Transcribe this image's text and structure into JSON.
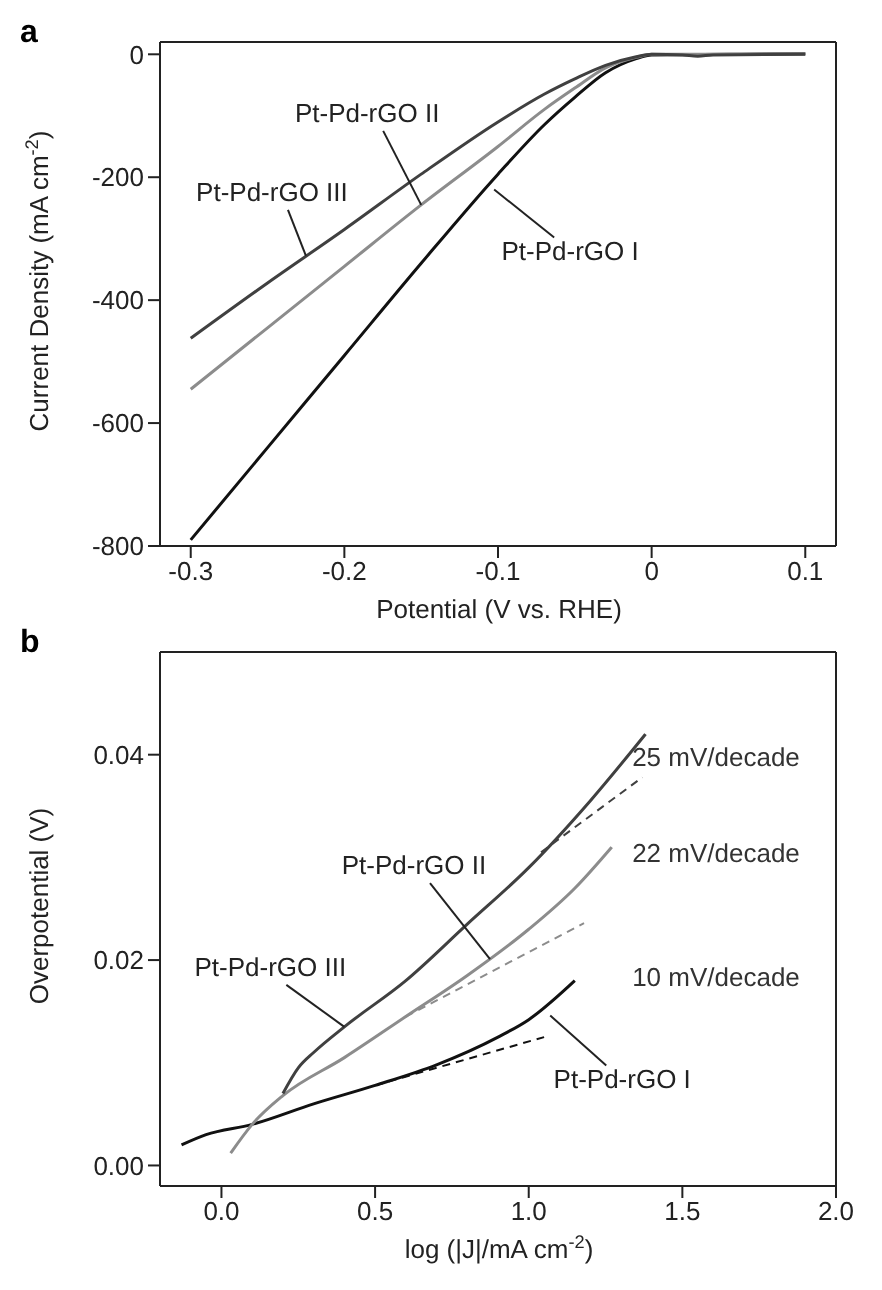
{
  "chart_data": [
    {
      "type": "line",
      "title": "a",
      "xlabel": "Potential (V vs. RHE)",
      "ylabel": "Current Density (mA cm$^{-2}$)",
      "xlim": [
        -0.32,
        0.12
      ],
      "xticks": [
        -0.3,
        -0.2,
        -0.1,
        0.0,
        0.1
      ],
      "ylim": [
        -800,
        20
      ],
      "yticks": [
        -800,
        -600,
        -400,
        -200,
        0
      ],
      "legend": false,
      "marker": "none",
      "series": [
        {
          "color": "#111111",
          "x": [
            -0.3,
            -0.25,
            -0.2,
            -0.15,
            -0.1,
            -0.07,
            -0.05,
            -0.03,
            -0.01,
            0,
            0.05,
            0.1
          ],
          "values": [
            -790,
            -640,
            -490,
            -340,
            -195,
            -115,
            -70,
            -30,
            -7,
            -1,
            0,
            1
          ]
        },
        {
          "color": "#8c8c8c",
          "x": [
            -0.3,
            -0.25,
            -0.2,
            -0.15,
            -0.1,
            -0.07,
            -0.05,
            -0.03,
            -0.01,
            0,
            0.05,
            0.1
          ],
          "values": [
            -545,
            -445,
            -345,
            -245,
            -150,
            -90,
            -55,
            -22,
            -5,
            0,
            0,
            1
          ]
        },
        {
          "color": "#404040",
          "x": [
            -0.3,
            -0.25,
            -0.2,
            -0.15,
            -0.1,
            -0.07,
            -0.05,
            -0.03,
            -0.01,
            0,
            0.02,
            0.03,
            0.04,
            0.1
          ],
          "values": [
            -462,
            -372,
            -285,
            -195,
            -110,
            -65,
            -40,
            -18,
            -4,
            0,
            -1,
            -3,
            -1,
            0
          ]
        }
      ],
      "annotations": [
        {
          "text": "Pt-Pd-rGO III",
          "x": -0.225,
          "y": -328
        },
        {
          "text": "Pt-Pd-rGO II",
          "x": -0.15,
          "y": -245
        },
        {
          "text": "Pt-Pd-rGO I",
          "x": -0.1025,
          "y": -220
        }
      ]
    },
    {
      "type": "line",
      "title": "b",
      "xlabel": "log (|J|/mA cm$^{-2}$)",
      "ylabel": "Overpotential (V)",
      "xlim": [
        -0.2,
        2.0
      ],
      "xticks": [
        {
          "value": 0,
          "label": "0.0"
        },
        0.5,
        {
          "value": 1,
          "label": "1.0"
        },
        1.5,
        {
          "value": 2,
          "label": "2.0"
        }
      ],
      "ylim": [
        -0.002,
        0.05
      ],
      "yticks": [
        {
          "value": 0,
          "label": "0.00"
        },
        {
          "value": 0.02,
          "label": "0.02"
        },
        {
          "value": 0.04,
          "label": "0.04"
        }
      ],
      "legend": false,
      "marker": "none",
      "series": [
        {
          "color": "#111111",
          "x": [
            -0.13,
            -0.05,
            0.1,
            0.3,
            0.5,
            0.7,
            0.9,
            1.0,
            1.15
          ],
          "values": [
            0.002,
            0.003,
            0.004,
            0.006,
            0.0078,
            0.0098,
            0.0125,
            0.0142,
            0.018
          ]
        },
        {
          "color": "#8c8c8c",
          "x": [
            0.03,
            0.1,
            0.2,
            0.4,
            0.6,
            0.8,
            1.0,
            1.15,
            1.27
          ],
          "values": [
            0.0012,
            0.004,
            0.0068,
            0.0105,
            0.0145,
            0.0185,
            0.023,
            0.027,
            0.031
          ]
        },
        {
          "color": "#404040",
          "x": [
            0.2,
            0.25,
            0.3,
            0.4,
            0.6,
            0.8,
            1.0,
            1.2,
            1.38
          ],
          "values": [
            0.007,
            0.0095,
            0.011,
            0.0135,
            0.018,
            0.0235,
            0.029,
            0.0355,
            0.042
          ]
        },
        {
          "line_style": "dashed",
          "color": "#111111",
          "x": [
            0.5,
            1.05
          ],
          "values": [
            0.0078,
            0.0125
          ]
        },
        {
          "line_style": "dashed",
          "color": "#8c8c8c",
          "x": [
            0.6,
            1.18
          ],
          "values": [
            0.0145,
            0.0236
          ]
        },
        {
          "line_style": "dashed",
          "color": "#404040",
          "x": [
            1.04,
            1.37
          ],
          "values": [
            0.0305,
            0.0378
          ]
        }
      ],
      "annotations": [
        {
          "text": "Pt-Pd-rGO III",
          "x": 0.4,
          "y": 0.0135
        },
        {
          "text": "Pt-Pd-rGO II",
          "x": 0.874,
          "y": 0.0201
        },
        {
          "text": "Pt-Pd-rGO I",
          "x": 1.07,
          "y": 0.0146
        },
        "25 mV/decade",
        "22 mV/decade",
        "10 mV/decade"
      ]
    }
  ]
}
